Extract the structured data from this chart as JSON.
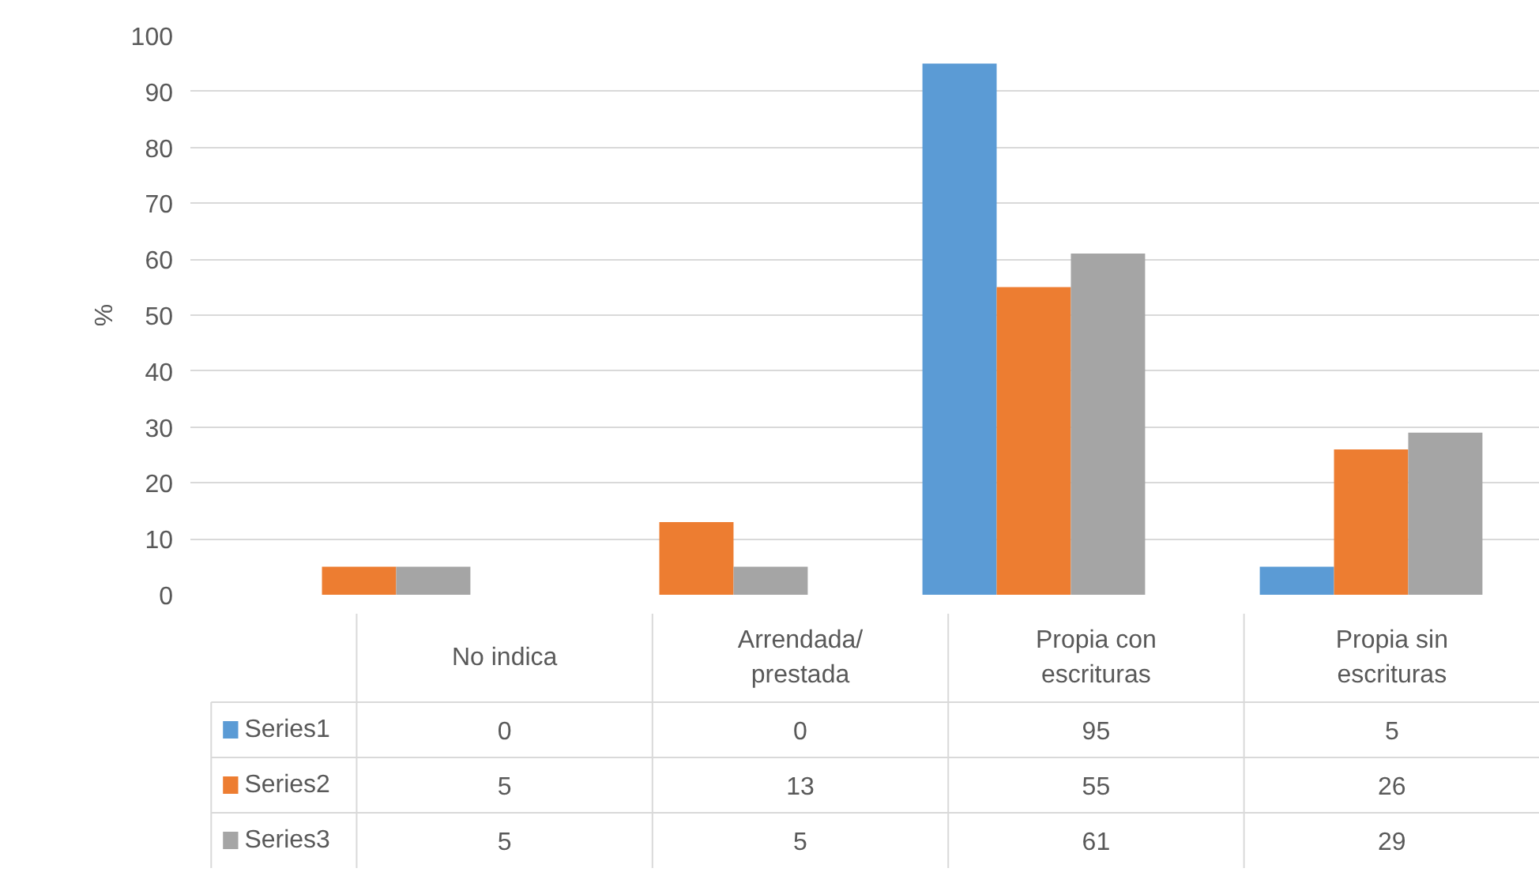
{
  "chart_data": {
    "type": "bar",
    "ylabel": "%",
    "categories": [
      "No indica",
      "Arrendada/ prestada",
      "Propia con escrituras",
      "Propia sin escrituras"
    ],
    "series": [
      {
        "name": "Series1",
        "color": "#5b9bd5",
        "values": [
          0,
          0,
          95,
          5
        ]
      },
      {
        "name": "Series2",
        "color": "#ed7d31",
        "values": [
          5,
          13,
          55,
          26
        ]
      },
      {
        "name": "Series3",
        "color": "#a5a5a5",
        "values": [
          5,
          5,
          61,
          29
        ]
      }
    ],
    "ylim": [
      0,
      100
    ],
    "yticks": [
      0,
      10,
      20,
      30,
      40,
      50,
      60,
      70,
      80,
      90,
      100
    ],
    "grid": "y",
    "legend": "bottom",
    "data_labels": true
  }
}
